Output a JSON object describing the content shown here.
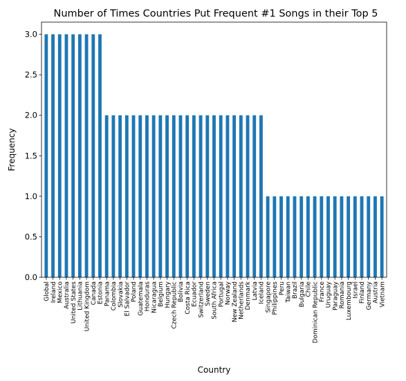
{
  "chart_data": {
    "type": "bar",
    "title": "Number of Times Countries Put Frequent #1 Songs in their Top 5",
    "xlabel": "Country",
    "ylabel": "Frequency",
    "ylim": [
      0,
      3.15
    ],
    "yticks": [
      "0.0",
      "0.5",
      "1.0",
      "1.5",
      "2.0",
      "2.5",
      "3.0"
    ],
    "grid": false,
    "legend": "none",
    "bar_color": "#1f77b4",
    "categories": [
      "Global",
      "Ireland",
      "Mexico",
      "Australia",
      "United States",
      "Lithuania",
      "United Kingdom",
      "Canada",
      "Estonia",
      "Panama",
      "Colombia",
      "Slovakia",
      "El Salvador",
      "Poland",
      "Guatemala",
      "Honduras",
      "Nicaragua",
      "Belgium",
      "Hungary",
      "Czech Republic",
      "Bolivia",
      "Costa Rica",
      "Ecuador",
      "Switzerland",
      "Sweden",
      "South Africa",
      "Portugal",
      "Norway",
      "New Zealand",
      "Netherlands",
      "Denmark",
      "Latvia",
      "Iceland",
      "Singapore",
      "Philippines",
      "Peru",
      "Taiwan",
      "Brazil",
      "Bulgaria",
      "Chile",
      "Dominican Republic",
      "France",
      "Uruguay",
      "Paraguay",
      "Romania",
      "Luxembourg",
      "Israel",
      "Finland",
      "Germany",
      "Austria",
      "Vietnam"
    ],
    "values": [
      3,
      3,
      3,
      3,
      3,
      3,
      3,
      3,
      3,
      2,
      2,
      2,
      2,
      2,
      2,
      2,
      2,
      2,
      2,
      2,
      2,
      2,
      2,
      2,
      2,
      2,
      2,
      2,
      2,
      2,
      2,
      2,
      2,
      1,
      1,
      1,
      1,
      1,
      1,
      1,
      1,
      1,
      1,
      1,
      1,
      1,
      1,
      1,
      1,
      1,
      1
    ]
  }
}
